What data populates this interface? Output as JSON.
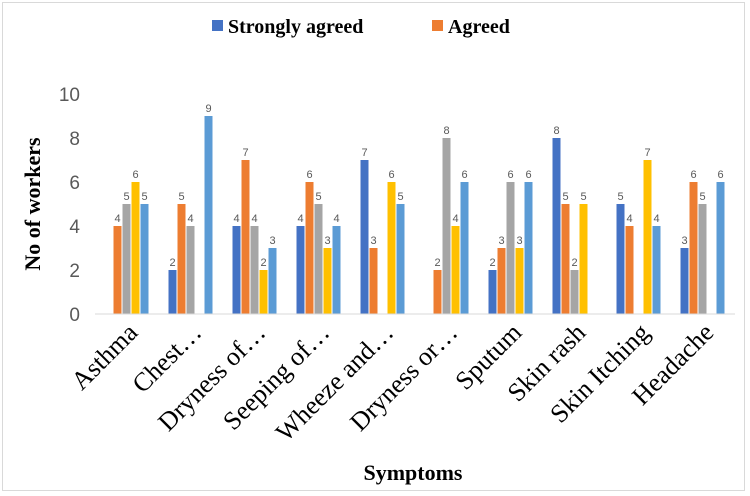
{
  "chart_data": {
    "type": "bar",
    "title": "",
    "xlabel": "Symptoms",
    "ylabel": "No of workers",
    "ylim": [
      0,
      10
    ],
    "yticks": [
      0,
      2,
      4,
      6,
      8,
      10
    ],
    "grid": false,
    "legend_position": "top",
    "categories": [
      "Asthma",
      "Chest…",
      "Dryness of…",
      "Seeping of…",
      "Wheeze and…",
      "Dryness or…",
      "Sputum",
      "Skin rash",
      "Skin Itching",
      "Headache"
    ],
    "series": [
      {
        "name": "Strongly agreed",
        "color": "#4472C4",
        "values": [
          0,
          2,
          4,
          4,
          7,
          0,
          2,
          8,
          5,
          3
        ]
      },
      {
        "name": "Agreed",
        "color": "#ED7D31",
        "values": [
          4,
          5,
          7,
          6,
          3,
          2,
          3,
          5,
          4,
          6
        ]
      },
      {
        "color": "#A5A5A5",
        "values": [
          5,
          4,
          4,
          5,
          0,
          8,
          6,
          2,
          0,
          5
        ]
      },
      {
        "color": "#FFC000",
        "values": [
          6,
          0,
          2,
          3,
          6,
          4,
          3,
          5,
          7,
          0
        ]
      },
      {
        "color": "#5B9BD5",
        "values": [
          5,
          9,
          3,
          4,
          5,
          6,
          6,
          0,
          4,
          6
        ]
      }
    ],
    "data_labels": true
  }
}
